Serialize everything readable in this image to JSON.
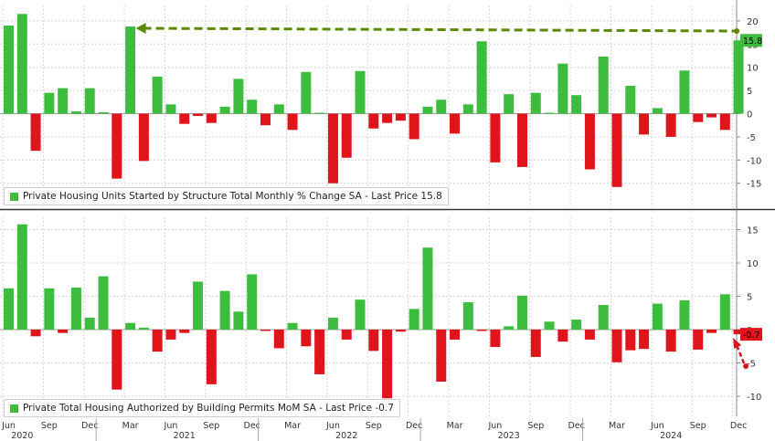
{
  "colors": {
    "positive": "#3dbd3d",
    "negative": "#e0141b",
    "grid": "#d6d6d6",
    "arrow": "#5a8a00",
    "redArrow": "#d9161c",
    "axisText": "#333333"
  },
  "x_axis": {
    "month_labels": [
      "Jun",
      "Sep",
      "Dec",
      "Mar",
      "Jun",
      "Sep",
      "Dec",
      "Mar",
      "Jun",
      "Sep",
      "Dec",
      "Mar",
      "Jun",
      "Sep",
      "Dec",
      "Mar",
      "Jun",
      "Sep",
      "Dec"
    ],
    "year_labels": [
      "2020",
      "2021",
      "2022",
      "2023",
      "2024"
    ]
  },
  "chart_data": [
    {
      "type": "bar",
      "legend": "Private Housing Units Started by Structure Total Monthly % Change SA - Last Price 15.8",
      "last_price_label": "15.8",
      "yticks": [
        20,
        15,
        10,
        5,
        0,
        -5,
        -10,
        -15
      ],
      "ylim": [
        -18,
        22
      ],
      "x": [
        "2020-06",
        "2020-07",
        "2020-08",
        "2020-09",
        "2020-10",
        "2020-11",
        "2020-12",
        "2021-01",
        "2021-02",
        "2021-03",
        "2021-04",
        "2021-05",
        "2021-06",
        "2021-07",
        "2021-08",
        "2021-09",
        "2021-10",
        "2021-11",
        "2021-12",
        "2022-01",
        "2022-02",
        "2022-03",
        "2022-04",
        "2022-05",
        "2022-06",
        "2022-07",
        "2022-08",
        "2022-09",
        "2022-10",
        "2022-11",
        "2022-12",
        "2023-01",
        "2023-02",
        "2023-03",
        "2023-04",
        "2023-05",
        "2023-06",
        "2023-07",
        "2023-08",
        "2023-09",
        "2023-10",
        "2023-11",
        "2023-12",
        "2024-01",
        "2024-02",
        "2024-03",
        "2024-04",
        "2024-05",
        "2024-06",
        "2024-07",
        "2024-08",
        "2024-09",
        "2024-10",
        "2024-11",
        "2024-12"
      ],
      "values": [
        19,
        21.5,
        -8,
        4.5,
        5.5,
        0.5,
        5.5,
        0.3,
        -14,
        18.8,
        -10.2,
        8,
        2,
        -2.2,
        -0.5,
        -2,
        1.5,
        7.5,
        3,
        -2.5,
        2,
        -3.5,
        9,
        0.2,
        -15,
        -9.5,
        9.2,
        -3.2,
        -2,
        -1.5,
        -5.5,
        1.5,
        3,
        -4.3,
        2,
        15.6,
        -10.5,
        4.2,
        -11.5,
        4.5,
        0.2,
        10.8,
        4,
        -12,
        12.3,
        -15.8,
        6,
        -4.5,
        1.2,
        -5,
        9.3,
        -1.8,
        -0.8,
        -3.5,
        15.8
      ]
    },
    {
      "type": "bar",
      "legend": "Private Total Housing Authorized by Building Permits MoM SA - Last Price -0.7",
      "last_price_label": "-0.7",
      "yticks": [
        15,
        10,
        5,
        0,
        -5,
        -10
      ],
      "ylim": [
        -12,
        17.5
      ],
      "x": [
        "2020-06",
        "2020-07",
        "2020-08",
        "2020-09",
        "2020-10",
        "2020-11",
        "2020-12",
        "2021-01",
        "2021-02",
        "2021-03",
        "2021-04",
        "2021-05",
        "2021-06",
        "2021-07",
        "2021-08",
        "2021-09",
        "2021-10",
        "2021-11",
        "2021-12",
        "2022-01",
        "2022-02",
        "2022-03",
        "2022-04",
        "2022-05",
        "2022-06",
        "2022-07",
        "2022-08",
        "2022-09",
        "2022-10",
        "2022-11",
        "2022-12",
        "2023-01",
        "2023-02",
        "2023-03",
        "2023-04",
        "2023-05",
        "2023-06",
        "2023-07",
        "2023-08",
        "2023-09",
        "2023-10",
        "2023-11",
        "2023-12",
        "2024-01",
        "2024-02",
        "2024-03",
        "2024-04",
        "2024-05",
        "2024-06",
        "2024-07",
        "2024-08",
        "2024-09",
        "2024-10",
        "2024-11",
        "2024-12"
      ],
      "values": [
        6.2,
        15.8,
        -1,
        6.2,
        -0.5,
        6.3,
        1.8,
        8,
        -9,
        1,
        0.3,
        -3.3,
        -1.5,
        -0.5,
        7.2,
        -8.2,
        5.8,
        2.7,
        8.3,
        -0.2,
        -2.8,
        1,
        -2.5,
        -6.7,
        1.8,
        -1.5,
        4.5,
        -3.2,
        -10.3,
        -0.3,
        3.1,
        12.3,
        -7.8,
        -1.5,
        4.1,
        -0.2,
        -2.6,
        0.5,
        5.1,
        -4.1,
        1.2,
        -1.8,
        1.5,
        -1.5,
        3.7,
        -4.9,
        -3.1,
        -2.9,
        3.9,
        -3.3,
        4.4,
        -3,
        -0.5,
        5.3,
        -0.7
      ]
    }
  ]
}
